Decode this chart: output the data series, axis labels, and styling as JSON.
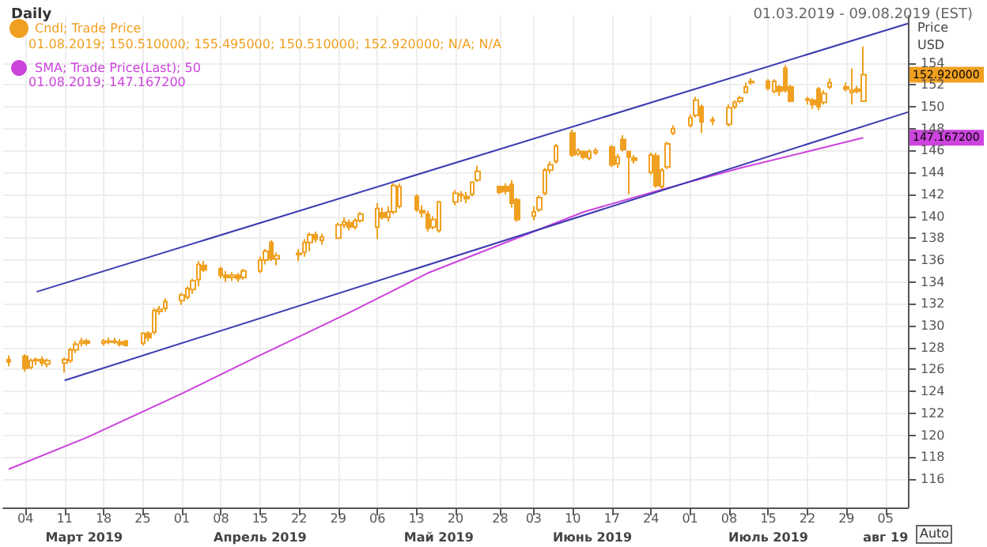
{
  "chart_data": {
    "type": "candlestick",
    "title": "Daily",
    "subtitle": "01.03.2019 - 09.08.2019 (EST)",
    "ylabel": "Price USD",
    "xlim": [
      "2019-02-28",
      "2019-08-09"
    ],
    "xticks": [
      {
        "value": "2019-03-04",
        "label": "04"
      },
      {
        "value": "2019-03-11",
        "label": "11"
      },
      {
        "value": "2019-03-18",
        "label": "18"
      },
      {
        "value": "2019-03-25",
        "label": "25"
      },
      {
        "value": "2019-04-01",
        "label": "01"
      },
      {
        "value": "2019-04-08",
        "label": "08"
      },
      {
        "value": "2019-04-15",
        "label": "15"
      },
      {
        "value": "2019-04-22",
        "label": "22"
      },
      {
        "value": "2019-04-29",
        "label": "29"
      },
      {
        "value": "2019-05-06",
        "label": "06"
      },
      {
        "value": "2019-05-13",
        "label": "13"
      },
      {
        "value": "2019-05-20",
        "label": "20"
      },
      {
        "value": "2019-05-28",
        "label": "28"
      },
      {
        "value": "2019-06-03",
        "label": "03"
      },
      {
        "value": "2019-06-10",
        "label": "10"
      },
      {
        "value": "2019-06-17",
        "label": "17"
      },
      {
        "value": "2019-06-24",
        "label": "24"
      },
      {
        "value": "2019-07-01",
        "label": "01"
      },
      {
        "value": "2019-07-08",
        "label": "08"
      },
      {
        "value": "2019-07-15",
        "label": "15"
      },
      {
        "value": "2019-07-22",
        "label": "22"
      },
      {
        "value": "2019-07-29",
        "label": "29"
      },
      {
        "value": "2019-08-05",
        "label": "05"
      }
    ],
    "ylim": [
      113.4,
      158.3
    ],
    "yticks": [
      116,
      118,
      120,
      122,
      124,
      126,
      128,
      130,
      132,
      134,
      136,
      138,
      140,
      142,
      144,
      146,
      148,
      150,
      152,
      154
    ],
    "grid": true,
    "legend": "top left",
    "series": [
      {
        "name": "Cndl; Trade Price",
        "color": "#f0a020",
        "x": [
          "2019-03-01",
          "2019-03-04",
          "2019-03-05",
          "2019-03-06",
          "2019-03-07",
          "2019-03-08",
          "2019-03-11",
          "2019-03-12",
          "2019-03-13",
          "2019-03-14",
          "2019-03-15",
          "2019-03-18",
          "2019-03-19",
          "2019-03-20",
          "2019-03-21",
          "2019-03-22",
          "2019-03-25",
          "2019-03-26",
          "2019-03-27",
          "2019-03-28",
          "2019-03-29",
          "2019-04-01",
          "2019-04-02",
          "2019-04-03",
          "2019-04-04",
          "2019-04-05",
          "2019-04-08",
          "2019-04-09",
          "2019-04-10",
          "2019-04-11",
          "2019-04-12",
          "2019-04-15",
          "2019-04-16",
          "2019-04-17",
          "2019-04-18",
          "2019-04-22",
          "2019-04-23",
          "2019-04-24",
          "2019-04-25",
          "2019-04-26",
          "2019-04-29",
          "2019-04-30",
          "2019-05-01",
          "2019-05-02",
          "2019-05-03",
          "2019-05-06",
          "2019-05-07",
          "2019-05-08",
          "2019-05-09",
          "2019-05-10",
          "2019-05-13",
          "2019-05-14",
          "2019-05-15",
          "2019-05-16",
          "2019-05-17",
          "2019-05-20",
          "2019-05-21",
          "2019-05-22",
          "2019-05-23",
          "2019-05-24",
          "2019-05-28",
          "2019-05-29",
          "2019-05-30",
          "2019-05-31",
          "2019-06-03",
          "2019-06-04",
          "2019-06-05",
          "2019-06-06",
          "2019-06-07",
          "2019-06-10",
          "2019-06-11",
          "2019-06-12",
          "2019-06-13",
          "2019-06-14",
          "2019-06-17",
          "2019-06-18",
          "2019-06-19",
          "2019-06-20",
          "2019-06-21",
          "2019-06-24",
          "2019-06-25",
          "2019-06-26",
          "2019-06-27",
          "2019-06-28",
          "2019-07-01",
          "2019-07-02",
          "2019-07-03",
          "2019-07-05",
          "2019-07-08",
          "2019-07-09",
          "2019-07-10",
          "2019-07-11",
          "2019-07-12",
          "2019-07-15",
          "2019-07-16",
          "2019-07-17",
          "2019-07-18",
          "2019-07-19",
          "2019-07-22",
          "2019-07-23",
          "2019-07-24",
          "2019-07-25",
          "2019-07-26",
          "2019-07-29",
          "2019-07-30",
          "2019-07-31",
          "2019-08-01"
        ],
        "ohlc": [
          [
            126.9,
            127.3,
            126.3,
            126.7
          ],
          [
            127.2,
            127.4,
            125.8,
            126.1
          ],
          [
            126.2,
            127.0,
            126.0,
            126.8
          ],
          [
            126.8,
            127.1,
            126.4,
            126.9
          ],
          [
            126.9,
            127.2,
            126.3,
            126.6
          ],
          [
            126.5,
            127.0,
            126.2,
            126.8
          ],
          [
            126.6,
            127.1,
            125.7,
            126.9
          ],
          [
            126.8,
            128.0,
            126.6,
            127.8
          ],
          [
            127.8,
            128.6,
            127.5,
            128.3
          ],
          [
            128.4,
            128.9,
            128.1,
            128.6
          ],
          [
            128.6,
            128.8,
            128.2,
            128.4
          ],
          [
            128.4,
            128.8,
            128.2,
            128.6
          ],
          [
            128.5,
            128.9,
            128.3,
            128.6
          ],
          [
            128.6,
            128.9,
            128.3,
            128.5
          ],
          [
            128.5,
            128.8,
            128.1,
            128.3
          ],
          [
            128.6,
            128.7,
            128.1,
            128.2
          ],
          [
            128.4,
            129.4,
            128.2,
            129.3
          ],
          [
            129.3,
            129.5,
            128.6,
            128.9
          ],
          [
            129.4,
            131.6,
            129.2,
            131.4
          ],
          [
            131.3,
            131.8,
            131.0,
            131.5
          ],
          [
            131.6,
            132.5,
            131.3,
            132.2
          ],
          [
            132.3,
            133.0,
            131.9,
            132.8
          ],
          [
            132.6,
            133.6,
            132.4,
            133.4
          ],
          [
            133.3,
            134.3,
            132.9,
            134.1
          ],
          [
            134.2,
            135.9,
            133.6,
            135.6
          ],
          [
            135.5,
            135.9,
            134.9,
            135.1
          ],
          [
            135.2,
            135.4,
            134.3,
            134.6
          ],
          [
            134.6,
            135.0,
            134.0,
            134.4
          ],
          [
            134.4,
            134.9,
            134.1,
            134.6
          ],
          [
            134.6,
            134.8,
            134.0,
            134.3
          ],
          [
            134.4,
            135.2,
            134.2,
            135.0
          ],
          [
            135.0,
            136.3,
            134.8,
            136.0
          ],
          [
            136.0,
            137.0,
            135.6,
            136.8
          ],
          [
            137.6,
            137.8,
            135.9,
            136.1
          ],
          [
            136.1,
            136.7,
            135.5,
            136.4
          ],
          [
            136.5,
            137.0,
            135.9,
            136.6
          ],
          [
            136.7,
            137.9,
            136.3,
            137.6
          ],
          [
            137.6,
            138.5,
            136.8,
            138.3
          ],
          [
            138.3,
            138.6,
            137.6,
            137.9
          ],
          [
            137.8,
            138.4,
            137.4,
            138.1
          ],
          [
            138.0,
            139.4,
            137.9,
            139.2
          ],
          [
            139.2,
            139.9,
            138.9,
            139.5
          ],
          [
            139.4,
            139.7,
            138.7,
            139.0
          ],
          [
            139.0,
            139.8,
            138.8,
            139.6
          ],
          [
            139.6,
            140.4,
            139.4,
            140.2
          ],
          [
            139.0,
            141.2,
            137.9,
            140.7
          ],
          [
            140.3,
            140.8,
            139.7,
            139.9
          ],
          [
            139.9,
            140.9,
            139.5,
            140.4
          ],
          [
            140.4,
            143.0,
            140.2,
            142.8
          ],
          [
            140.9,
            143.0,
            140.7,
            142.7
          ],
          [
            141.8,
            142.0,
            140.4,
            140.6
          ],
          [
            140.5,
            141.0,
            139.9,
            140.3
          ],
          [
            140.2,
            140.5,
            138.6,
            138.9
          ],
          [
            139.0,
            140.0,
            138.8,
            139.7
          ],
          [
            138.7,
            141.4,
            138.5,
            141.3
          ],
          [
            141.3,
            142.4,
            141.0,
            142.1
          ],
          [
            141.9,
            142.3,
            141.3,
            142.0
          ],
          [
            141.8,
            142.2,
            141.2,
            141.6
          ],
          [
            142.0,
            143.2,
            141.8,
            143.1
          ],
          [
            143.3,
            144.6,
            143.1,
            144.1
          ],
          [
            142.7,
            142.8,
            142.0,
            142.2
          ],
          [
            142.7,
            143.0,
            142.0,
            142.3
          ],
          [
            142.9,
            143.3,
            140.8,
            141.2
          ],
          [
            141.5,
            141.7,
            139.5,
            139.7
          ],
          [
            140.0,
            140.9,
            139.6,
            140.4
          ],
          [
            140.6,
            141.9,
            140.4,
            141.7
          ],
          [
            142.1,
            144.4,
            141.9,
            144.2
          ],
          [
            144.2,
            145.0,
            143.9,
            144.7
          ],
          [
            145.0,
            146.6,
            144.8,
            146.4
          ],
          [
            147.6,
            147.9,
            145.4,
            145.6
          ],
          [
            145.7,
            146.2,
            145.5,
            146.0
          ],
          [
            145.9,
            146.0,
            145.2,
            145.4
          ],
          [
            145.3,
            146.1,
            145.1,
            145.9
          ],
          [
            145.8,
            146.2,
            145.6,
            146.0
          ],
          [
            146.3,
            146.5,
            144.5,
            144.7
          ],
          [
            144.8,
            145.7,
            144.4,
            145.4
          ],
          [
            147.0,
            147.4,
            145.9,
            146.1
          ],
          [
            145.9,
            146.0,
            142.0,
            145.4
          ],
          [
            145.3,
            145.6,
            144.8,
            145.1
          ],
          [
            144.0,
            145.8,
            143.8,
            145.6
          ],
          [
            145.5,
            145.8,
            142.6,
            142.8
          ],
          [
            142.7,
            144.4,
            142.5,
            144.2
          ],
          [
            144.5,
            146.8,
            144.3,
            146.6
          ],
          [
            147.6,
            148.3,
            147.4,
            148.0
          ],
          [
            148.3,
            149.3,
            148.1,
            149.0
          ],
          [
            149.2,
            150.9,
            149.0,
            150.6
          ],
          [
            150.0,
            150.2,
            147.6,
            148.6
          ],
          [
            148.8,
            149.1,
            148.3,
            148.7
          ],
          [
            148.4,
            150.2,
            148.2,
            149.9
          ],
          [
            150.0,
            150.6,
            149.8,
            150.4
          ],
          [
            150.5,
            151.0,
            150.3,
            150.8
          ],
          [
            151.3,
            152.2,
            151.2,
            151.8
          ],
          [
            152.2,
            152.6,
            152.0,
            152.3
          ],
          [
            152.3,
            152.5,
            151.5,
            151.7
          ],
          [
            151.4,
            152.5,
            151.2,
            152.3
          ],
          [
            151.8,
            152.0,
            151.0,
            151.4
          ],
          [
            153.5,
            153.8,
            151.3,
            151.5
          ],
          [
            151.8,
            152.0,
            150.4,
            150.5
          ],
          [
            150.6,
            150.9,
            150.2,
            150.7
          ],
          [
            150.6,
            150.8,
            149.8,
            150.2
          ],
          [
            151.6,
            151.8,
            149.7,
            150.0
          ],
          [
            150.4,
            151.5,
            150.2,
            151.2
          ],
          [
            151.8,
            152.6,
            151.6,
            152.2
          ],
          [
            151.8,
            152.2,
            151.4,
            151.6
          ],
          [
            151.3,
            153.5,
            150.2,
            151.5
          ],
          [
            151.6,
            151.9,
            151.2,
            151.4
          ],
          [
            150.51,
            155.495,
            150.51,
            152.92
          ]
        ]
      },
      {
        "type": "line",
        "name": "SMA; Trade Price(Last); 50",
        "color": "#cc44dd",
        "x": [
          "2019-03-01",
          "2019-03-15",
          "2019-04-01",
          "2019-04-15",
          "2019-04-22",
          "2019-05-01",
          "2019-05-15",
          "2019-05-29",
          "2019-06-12",
          "2019-06-25",
          "2019-07-10",
          "2019-07-22",
          "2019-08-01"
        ],
        "values": [
          116.9,
          119.8,
          123.8,
          127.3,
          129.0,
          131.2,
          134.8,
          137.6,
          140.4,
          142.3,
          144.4,
          145.9,
          147.1672
        ]
      },
      {
        "type": "line",
        "color": "#3a3ab0",
        "x": [
          "2019-03-06",
          "2019-08-09"
        ],
        "values": [
          133.1,
          157.6
        ]
      },
      {
        "type": "line",
        "color": "#3a3ab0",
        "x": [
          "2019-03-11",
          "2019-08-09"
        ],
        "values": [
          125.0,
          149.5
        ]
      }
    ],
    "annotations": [
      "01.08.2019; 150.510000; 155.495000; 150.510000; 152.920000; N/A; N/A",
      "01.08.2019; 147.167200",
      "152.920000",
      "147.167200",
      "Март 2019",
      "Апрель 2019",
      "Май 2019",
      "Июнь 2019",
      "Июль 2019",
      "авг 19",
      "Auto"
    ]
  }
}
